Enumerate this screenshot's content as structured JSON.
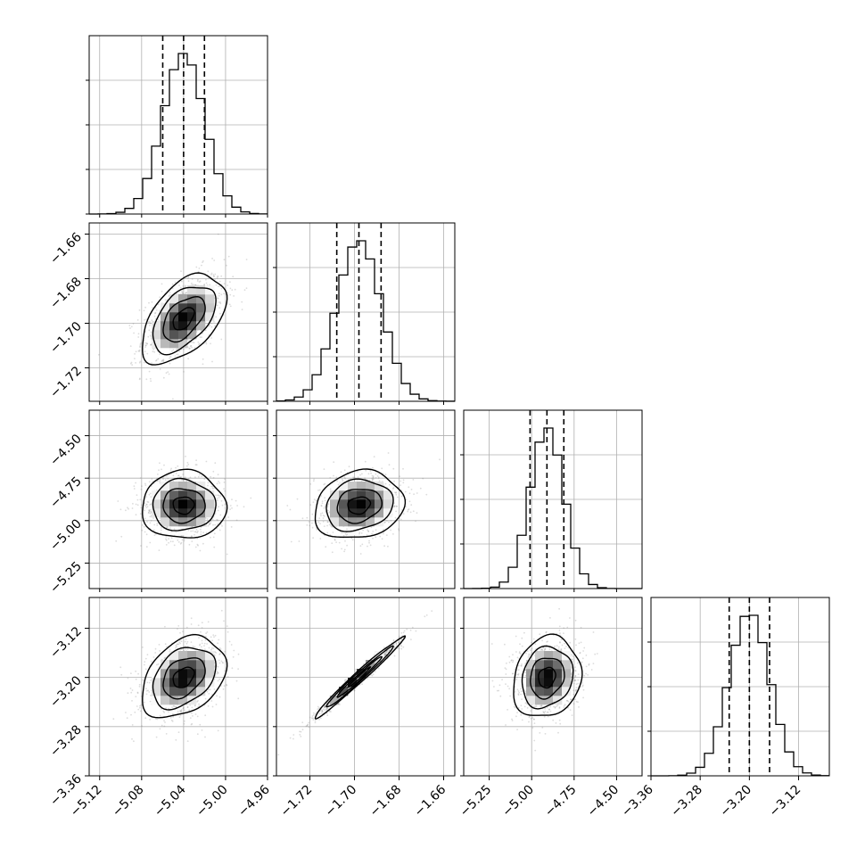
{
  "chart_data": {
    "type": "corner",
    "parameters": [
      {
        "index": 0,
        "mean": -5.04,
        "sigma": 0.02,
        "range": [
          -5.13,
          -4.96
        ],
        "ticks": [
          -5.12,
          -5.08,
          -5.04,
          -5.0,
          -4.96
        ],
        "tick_labels": [
          "−5.12",
          "−5.08",
          "−5.04",
          "−5.00",
          "−4.96"
        ]
      },
      {
        "index": 1,
        "mean": -1.698,
        "sigma": 0.01,
        "range": [
          -1.735,
          -1.655
        ],
        "ticks": [
          -1.72,
          -1.7,
          -1.68,
          -1.66
        ],
        "tick_labels": [
          "−1.72",
          "−1.70",
          "−1.68",
          "−1.66"
        ]
      },
      {
        "index": 2,
        "mean": -4.91,
        "sigma": 0.1,
        "range": [
          -5.4,
          -4.35
        ],
        "ticks": [
          -5.25,
          -5.0,
          -4.75,
          -4.5
        ],
        "tick_labels": [
          "−5.25",
          "−5.00",
          "−4.75",
          "−4.50"
        ]
      },
      {
        "index": 3,
        "mean": -3.2,
        "sigma": 0.033,
        "range": [
          -3.36,
          -3.07
        ],
        "ticks": [
          -3.36,
          -3.28,
          -3.2,
          -3.12
        ],
        "tick_labels": [
          "−3.36",
          "−3.28",
          "−3.20",
          "−3.12"
        ]
      }
    ],
    "quantiles": [
      0.16,
      0.5,
      0.84
    ],
    "correlations": [
      {
        "pair": [
          1,
          0
        ],
        "rho": 0.5
      },
      {
        "pair": [
          2,
          0
        ],
        "rho": 0.0
      },
      {
        "pair": [
          2,
          1
        ],
        "rho": 0.15
      },
      {
        "pair": [
          3,
          0
        ],
        "rho": 0.35
      },
      {
        "pair": [
          3,
          1
        ],
        "rho": 0.985
      },
      {
        "pair": [
          3,
          2
        ],
        "rho": 0.15
      }
    ],
    "grid": true,
    "colors": {
      "line": "#000000",
      "grid": "#b0b0b0",
      "points": "#808080"
    }
  }
}
